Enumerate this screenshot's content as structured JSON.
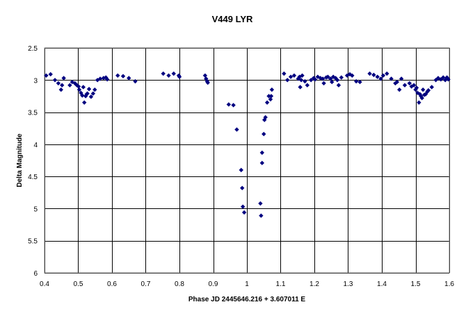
{
  "chart_data": {
    "type": "scatter",
    "title": "V449 LYR",
    "xlabel": "Phase JD 2445646.216 + 3.607011 E",
    "ylabel": "Delta Magnitude",
    "xlim": [
      0.4,
      1.6
    ],
    "ylim": [
      2.5,
      6
    ],
    "y_inverted": true,
    "x_ticks": [
      "0.4",
      "0.5",
      "0.6",
      "0.7",
      "0.8",
      "0.9",
      "1",
      "1.1",
      "1.2",
      "1.3",
      "1.4",
      "1.5",
      "1.6"
    ],
    "y_ticks": [
      "2.5",
      "3",
      "3.5",
      "4",
      "4.5",
      "5",
      "5.5",
      "6"
    ],
    "grid": true,
    "marker": "diamond",
    "marker_color": "#000080",
    "series": [
      {
        "points": [
          [
            0.405,
            2.93
          ],
          [
            0.418,
            2.91
          ],
          [
            0.431,
            3.0
          ],
          [
            0.441,
            3.05
          ],
          [
            0.449,
            3.15
          ],
          [
            0.452,
            3.08
          ],
          [
            0.457,
            2.97
          ],
          [
            0.475,
            3.08
          ],
          [
            0.482,
            3.03
          ],
          [
            0.49,
            3.05
          ],
          [
            0.496,
            3.08
          ],
          [
            0.501,
            3.1
          ],
          [
            0.503,
            3.15
          ],
          [
            0.508,
            3.2
          ],
          [
            0.512,
            3.24
          ],
          [
            0.515,
            3.11
          ],
          [
            0.518,
            3.35
          ],
          [
            0.522,
            3.25
          ],
          [
            0.525,
            3.22
          ],
          [
            0.527,
            3.21
          ],
          [
            0.532,
            3.14
          ],
          [
            0.538,
            3.26
          ],
          [
            0.544,
            3.21
          ],
          [
            0.549,
            3.15
          ],
          [
            0.557,
            3.0
          ],
          [
            0.565,
            2.98
          ],
          [
            0.575,
            2.97
          ],
          [
            0.582,
            2.96
          ],
          [
            0.586,
            2.99
          ],
          [
            0.617,
            2.93
          ],
          [
            0.633,
            2.94
          ],
          [
            0.65,
            2.97
          ],
          [
            0.669,
            3.02
          ],
          [
            0.752,
            2.9
          ],
          [
            0.768,
            2.93
          ],
          [
            0.783,
            2.9
          ],
          [
            0.798,
            2.93
          ],
          [
            0.8,
            2.95
          ],
          [
            0.876,
            2.93
          ],
          [
            0.879,
            2.98
          ],
          [
            0.882,
            3.02
          ],
          [
            0.884,
            3.04
          ],
          [
            0.946,
            3.38
          ],
          [
            0.96,
            3.39
          ],
          [
            0.97,
            3.77
          ],
          [
            0.983,
            4.4
          ],
          [
            0.986,
            4.68
          ],
          [
            0.988,
            4.97
          ],
          [
            0.992,
            5.06
          ],
          [
            1.04,
            4.92
          ],
          [
            1.042,
            5.11
          ],
          [
            1.045,
            4.29
          ],
          [
            1.045,
            4.13
          ],
          [
            1.05,
            3.84
          ],
          [
            1.052,
            3.62
          ],
          [
            1.055,
            3.58
          ],
          [
            1.06,
            3.35
          ],
          [
            1.065,
            3.25
          ],
          [
            1.07,
            3.3
          ],
          [
            1.072,
            3.25
          ],
          [
            1.074,
            3.15
          ],
          [
            1.11,
            2.9
          ],
          [
            1.12,
            3.0
          ],
          [
            1.13,
            2.95
          ],
          [
            1.14,
            2.93
          ],
          [
            1.152,
            2.98
          ],
          [
            1.156,
            2.95
          ],
          [
            1.158,
            3.11
          ],
          [
            1.161,
            3.0
          ],
          [
            1.164,
            2.93
          ],
          [
            1.172,
            3.02
          ],
          [
            1.179,
            3.08
          ],
          [
            1.19,
            3.0
          ],
          [
            1.198,
            2.97
          ],
          [
            1.202,
            2.99
          ],
          [
            1.21,
            2.95
          ],
          [
            1.218,
            2.97
          ],
          [
            1.225,
            2.98
          ],
          [
            1.228,
            3.05
          ],
          [
            1.235,
            2.96
          ],
          [
            1.24,
            2.95
          ],
          [
            1.248,
            2.98
          ],
          [
            1.252,
            3.03
          ],
          [
            1.256,
            2.95
          ],
          [
            1.263,
            2.97
          ],
          [
            1.268,
            3.0
          ],
          [
            1.272,
            3.08
          ],
          [
            1.28,
            2.96
          ],
          [
            1.297,
            2.93
          ],
          [
            1.305,
            2.91
          ],
          [
            1.312,
            2.93
          ],
          [
            1.324,
            3.02
          ],
          [
            1.335,
            3.03
          ],
          [
            1.364,
            2.9
          ],
          [
            1.376,
            2.92
          ],
          [
            1.387,
            2.95
          ],
          [
            1.397,
            2.98
          ],
          [
            1.404,
            2.93
          ],
          [
            1.415,
            2.9
          ],
          [
            1.428,
            2.98
          ],
          [
            1.44,
            3.05
          ],
          [
            1.445,
            3.03
          ],
          [
            1.452,
            3.15
          ],
          [
            1.458,
            2.98
          ],
          [
            1.468,
            3.08
          ],
          [
            1.482,
            3.05
          ],
          [
            1.488,
            3.1
          ],
          [
            1.495,
            3.08
          ],
          [
            1.5,
            3.15
          ],
          [
            1.503,
            3.12
          ],
          [
            1.506,
            3.2
          ],
          [
            1.51,
            3.35
          ],
          [
            1.513,
            3.22
          ],
          [
            1.516,
            3.25
          ],
          [
            1.519,
            3.28
          ],
          [
            1.522,
            3.15
          ],
          [
            1.526,
            3.23
          ],
          [
            1.53,
            3.22
          ],
          [
            1.535,
            3.18
          ],
          [
            1.538,
            3.16
          ],
          [
            1.548,
            3.11
          ],
          [
            1.56,
            3.0
          ],
          [
            1.567,
            2.97
          ],
          [
            1.575,
            2.99
          ],
          [
            1.582,
            2.96
          ],
          [
            1.588,
            3.0
          ],
          [
            1.593,
            2.96
          ],
          [
            1.597,
            2.99
          ]
        ]
      }
    ]
  }
}
